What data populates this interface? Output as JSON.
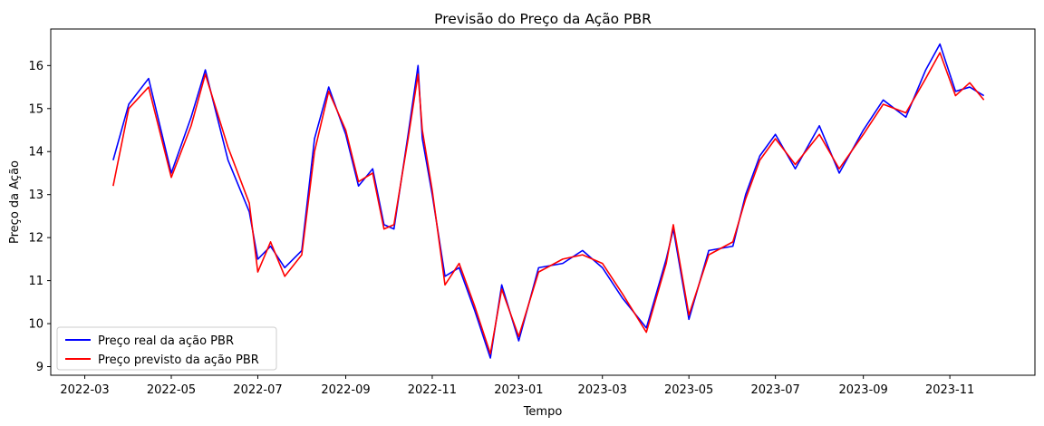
{
  "chart_data": {
    "type": "line",
    "title": "Previsão do Preço da Ação PBR",
    "xlabel": "Tempo",
    "ylabel": "Preço da Ação",
    "x_ticks": [
      "2022-03",
      "2022-05",
      "2022-07",
      "2022-09",
      "2022-11",
      "2023-01",
      "2023-03",
      "2023-05",
      "2023-07",
      "2023-09",
      "2023-11"
    ],
    "y_ticks": [
      9,
      10,
      11,
      12,
      13,
      14,
      15,
      16
    ],
    "xlim": [
      "2022-02-05",
      "2023-12-31"
    ],
    "ylim": [
      8.8,
      16.85
    ],
    "grid": false,
    "legend_position": "lower-left",
    "x": [
      "2022-03-21",
      "2022-04-01",
      "2022-04-15",
      "2022-05-01",
      "2022-05-15",
      "2022-05-25",
      "2022-06-10",
      "2022-06-25",
      "2022-07-01",
      "2022-07-10",
      "2022-07-20",
      "2022-08-01",
      "2022-08-10",
      "2022-08-20",
      "2022-09-01",
      "2022-09-10",
      "2022-09-20",
      "2022-09-28",
      "2022-10-05",
      "2022-10-15",
      "2022-10-22",
      "2022-10-25",
      "2022-11-01",
      "2022-11-10",
      "2022-11-20",
      "2022-12-01",
      "2022-12-12",
      "2022-12-20",
      "2023-01-01",
      "2023-01-15",
      "2023-02-01",
      "2023-02-15",
      "2023-03-01",
      "2023-03-15",
      "2023-04-01",
      "2023-04-15",
      "2023-04-20",
      "2023-05-01",
      "2023-05-15",
      "2023-06-01",
      "2023-06-10",
      "2023-06-20",
      "2023-07-01",
      "2023-07-15",
      "2023-08-01",
      "2023-08-15",
      "2023-09-01",
      "2023-09-15",
      "2023-10-01",
      "2023-10-15",
      "2023-10-25",
      "2023-11-05",
      "2023-11-15",
      "2023-11-25"
    ],
    "series": [
      {
        "name": "Preço real da ação PBR",
        "color": "#0000ff",
        "values": [
          13.8,
          15.1,
          15.7,
          13.5,
          14.8,
          15.9,
          13.8,
          12.6,
          11.5,
          11.8,
          11.3,
          11.7,
          14.3,
          15.5,
          14.4,
          13.2,
          13.6,
          12.3,
          12.2,
          14.4,
          16.0,
          14.3,
          13.0,
          11.1,
          11.3,
          10.3,
          9.2,
          10.9,
          9.6,
          11.3,
          11.4,
          11.7,
          11.3,
          10.6,
          9.9,
          11.5,
          12.2,
          10.1,
          11.7,
          11.8,
          13.0,
          13.9,
          14.4,
          13.6,
          14.6,
          13.5,
          14.5,
          15.2,
          14.8,
          15.9,
          16.5,
          15.4,
          15.5,
          15.3
        ]
      },
      {
        "name": "Preço previsto da ação PBR",
        "color": "#ff0000",
        "values": [
          13.2,
          15.0,
          15.5,
          13.4,
          14.6,
          15.8,
          14.1,
          12.8,
          11.2,
          11.9,
          11.1,
          11.6,
          14.0,
          15.4,
          14.5,
          13.3,
          13.5,
          12.2,
          12.3,
          14.3,
          15.8,
          14.5,
          13.1,
          10.9,
          11.4,
          10.4,
          9.3,
          10.8,
          9.7,
          11.2,
          11.5,
          11.6,
          11.4,
          10.7,
          9.8,
          11.4,
          12.3,
          10.2,
          11.6,
          11.9,
          12.9,
          13.8,
          14.3,
          13.7,
          14.4,
          13.6,
          14.4,
          15.1,
          14.9,
          15.7,
          16.3,
          15.3,
          15.6,
          15.2
        ]
      }
    ]
  }
}
